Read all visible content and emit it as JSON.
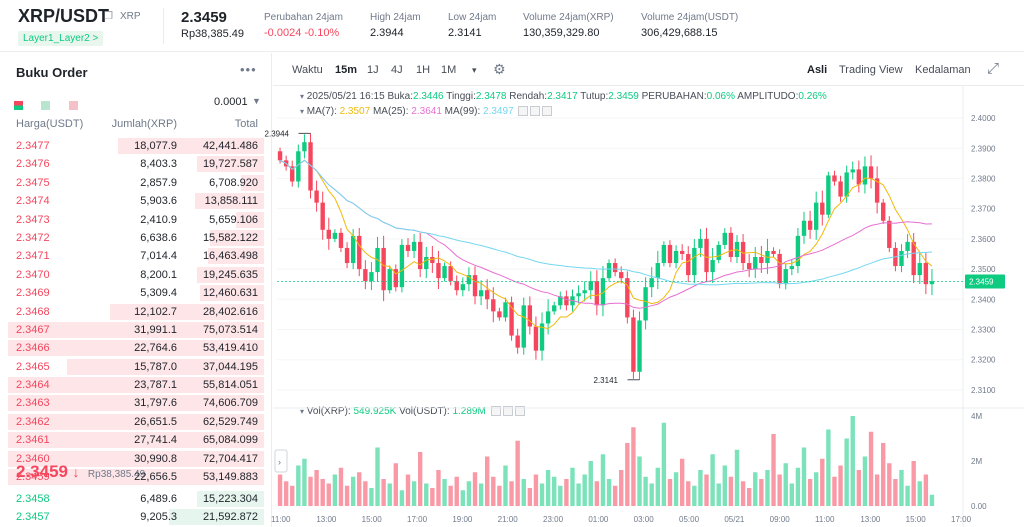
{
  "header": {
    "pair": "XRP/USDT",
    "coin": "XRP",
    "tag": "Layer1_Layer2 >",
    "last_price": "2.3459",
    "last_price_idr": "Rp38,385.49",
    "stats": [
      {
        "label": "Perubahan 24jam",
        "value": "-0.0024 -0.10%",
        "neg": true
      },
      {
        "label": "High 24jam",
        "value": "2.3944",
        "neg": false
      },
      {
        "label": "Low 24jam",
        "value": "2.3141",
        "neg": false
      },
      {
        "label": "Volume 24jam(XRP)",
        "value": "130,359,329.80",
        "neg": false
      },
      {
        "label": "Volume 24jam(USDT)",
        "value": "306,429,688.15",
        "neg": false
      }
    ]
  },
  "orderbook": {
    "title": "Buku Order",
    "more": "•••",
    "precision": "0.0001",
    "columns": {
      "price": "Harga(USDT)",
      "amount": "Jumlah(XRP)",
      "total": "Total"
    },
    "asks": [
      {
        "price": "2.3477",
        "amount": "18,077.9",
        "total": "42,441.486",
        "fill": 0.57
      },
      {
        "price": "2.3476",
        "amount": "8,403.3",
        "total": "19,727.587",
        "fill": 0.26
      },
      {
        "price": "2.3475",
        "amount": "2,857.9",
        "total": "6,708.920",
        "fill": 0.09
      },
      {
        "price": "2.3474",
        "amount": "5,903.6",
        "total": "13,858.111",
        "fill": 0.27
      },
      {
        "price": "2.3473",
        "amount": "2,410.9",
        "total": "5,659.106",
        "fill": 0.11
      },
      {
        "price": "2.3472",
        "amount": "6,638.6",
        "total": "15,582.122",
        "fill": 0.21
      },
      {
        "price": "2.3471",
        "amount": "7,014.4",
        "total": "16,463.498",
        "fill": 0.22
      },
      {
        "price": "2.3470",
        "amount": "8,200.1",
        "total": "19,245.635",
        "fill": 0.26
      },
      {
        "price": "2.3469",
        "amount": "5,309.4",
        "total": "12,460.631",
        "fill": 0.25
      },
      {
        "price": "2.3468",
        "amount": "12,102.7",
        "total": "28,402.616",
        "fill": 0.6
      },
      {
        "price": "2.3467",
        "amount": "31,991.1",
        "total": "75,073.514",
        "fill": 1.0
      },
      {
        "price": "2.3466",
        "amount": "22,764.6",
        "total": "53,419.410",
        "fill": 1.0
      },
      {
        "price": "2.3465",
        "amount": "15,787.0",
        "total": "37,044.195",
        "fill": 0.77
      },
      {
        "price": "2.3464",
        "amount": "23,787.1",
        "total": "55,814.051",
        "fill": 1.0
      },
      {
        "price": "2.3463",
        "amount": "31,797.6",
        "total": "74,606.709",
        "fill": 1.0
      },
      {
        "price": "2.3462",
        "amount": "26,651.5",
        "total": "62,529.749",
        "fill": 1.0
      },
      {
        "price": "2.3461",
        "amount": "27,741.4",
        "total": "65,084.099",
        "fill": 1.0
      },
      {
        "price": "2.3460",
        "amount": "30,990.8",
        "total": "72,704.417",
        "fill": 1.0
      },
      {
        "price": "2.3459",
        "amount": "22,656.5",
        "total": "53,149.883",
        "fill": 1.0
      }
    ],
    "mid_price": "2.3459",
    "mid_arrow": "↓",
    "mid_idr": "Rp38,385.49",
    "bids": [
      {
        "price": "2.3458",
        "amount": "6,489.6",
        "total": "15,223.304",
        "fill": 0.26
      },
      {
        "price": "2.3457",
        "amount": "9,205.3",
        "total": "21,592.872",
        "fill": 0.37
      }
    ]
  },
  "toolbar": {
    "items": [
      "Waktu",
      "15m",
      "1J",
      "4J",
      "1H",
      "1M",
      "▾"
    ],
    "active": "15m",
    "tabs": [
      "Asli",
      "Trading View",
      "Kedalaman"
    ],
    "active_tab": "Asli"
  },
  "chart_info": {
    "datetime": "2025/05/21 16:15",
    "open_label": "Buka:",
    "open": "2.3446",
    "high_label": "Tinggi:",
    "high": "2.3478",
    "low_label": "Rendah:",
    "low": "2.3417",
    "close_label": "Tutup:",
    "close": "2.3459",
    "change_label": "PERUBAHAN:",
    "change": "0.06%",
    "amp_label": "AMPLITUDO:",
    "amp": "0.26%",
    "ma7_label": "MA(7):",
    "ma7": "2.3507",
    "ma25_label": "MA(25):",
    "ma25": "2.3641",
    "ma99_label": "MA(99):",
    "ma99": "2.3497",
    "vol_label": "Vol(XRP):",
    "vol_xrp": "549.925K",
    "volu_label": "Vol(USDT):",
    "vol_usdt": "1.289M"
  },
  "colors": {
    "up": "#0ecb81",
    "down": "#f6465d",
    "ma7": "#f0b90b",
    "ma25": "#e86ed1",
    "ma99": "#74d7f0",
    "price_tag": "#0ecb81"
  },
  "chart_data": {
    "type": "candlestick",
    "price_axis": {
      "min": 2.306,
      "max": 2.402,
      "ticks": [
        "2.4000",
        "2.3900",
        "2.3800",
        "2.3700",
        "2.3600",
        "2.3500",
        "2.3400",
        "2.3300",
        "2.3200",
        "2.3100"
      ]
    },
    "current_price": "2.3459",
    "high_marker": "2.3944",
    "low_marker": "2.3141",
    "volume_axis": {
      "max": 4000000,
      "ticks": [
        "4M",
        "2M",
        "0.00"
      ]
    },
    "time_labels": [
      "11:00",
      "13:00",
      "15:00",
      "17:00",
      "19:00",
      "21:00",
      "23:00",
      "01:00",
      "03:00",
      "05:00",
      "05/21",
      "09:00",
      "11:00",
      "13:00",
      "15:00",
      "17:00"
    ],
    "close": [
      2.386,
      2.384,
      2.379,
      2.389,
      2.392,
      2.376,
      2.372,
      2.363,
      2.36,
      2.362,
      2.357,
      2.352,
      2.361,
      2.35,
      2.346,
      2.349,
      2.357,
      2.343,
      2.35,
      2.344,
      2.358,
      2.356,
      2.359,
      2.35,
      2.354,
      2.352,
      2.347,
      2.351,
      2.346,
      2.343,
      2.345,
      2.348,
      2.341,
      2.343,
      2.34,
      2.336,
      2.334,
      2.339,
      2.328,
      2.324,
      2.338,
      2.331,
      2.323,
      2.332,
      2.336,
      2.338,
      2.341,
      2.338,
      2.341,
      2.342,
      2.343,
      2.346,
      2.338,
      2.347,
      2.352,
      2.349,
      2.347,
      2.334,
      2.316,
      2.333,
      2.344,
      2.347,
      2.352,
      2.358,
      2.352,
      2.356,
      2.355,
      2.348,
      2.357,
      2.36,
      2.349,
      2.353,
      2.358,
      2.362,
      2.354,
      2.359,
      2.352,
      2.35,
      2.354,
      2.352,
      2.356,
      2.355,
      2.345,
      2.35,
      2.351,
      2.361,
      2.366,
      2.363,
      2.372,
      2.368,
      2.381,
      2.379,
      2.374,
      2.382,
      2.383,
      2.378,
      2.384,
      2.38,
      2.372,
      2.366,
      2.357,
      2.351,
      2.356,
      2.359,
      2.348,
      2.352,
      2.345,
      2.346
    ],
    "volume": [
      1.4,
      1.1,
      0.9,
      1.8,
      2.1,
      1.3,
      1.6,
      1.2,
      1.0,
      1.4,
      1.7,
      0.9,
      1.3,
      1.5,
      1.1,
      0.8,
      2.6,
      1.2,
      1.0,
      1.9,
      0.7,
      1.4,
      1.1,
      2.4,
      1.0,
      0.8,
      1.6,
      1.2,
      0.9,
      1.3,
      0.7,
      1.1,
      1.5,
      1.0,
      2.2,
      1.3,
      0.9,
      1.8,
      1.1,
      2.9,
      1.2,
      0.8,
      1.4,
      1.0,
      1.6,
      1.3,
      0.9,
      1.2,
      1.7,
      1.0,
      1.4,
      2.0,
      1.1,
      2.3,
      1.2,
      0.9,
      1.6,
      2.8,
      3.5,
      2.2,
      1.3,
      1.0,
      1.7,
      3.7,
      1.2,
      1.5,
      2.1,
      1.1,
      0.9,
      1.6,
      1.4,
      2.3,
      1.0,
      1.8,
      1.3,
      2.5,
      1.1,
      0.8,
      1.5,
      1.2,
      1.6,
      3.2,
      1.4,
      1.9,
      1.0,
      1.7,
      2.6,
      1.2,
      1.5,
      2.1,
      3.4,
      1.3,
      1.8,
      3.0,
      4.0,
      1.6,
      2.2,
      3.3,
      1.4,
      2.8,
      1.9,
      1.2,
      1.6,
      0.9,
      2.0,
      1.1,
      1.4,
      0.5
    ]
  }
}
